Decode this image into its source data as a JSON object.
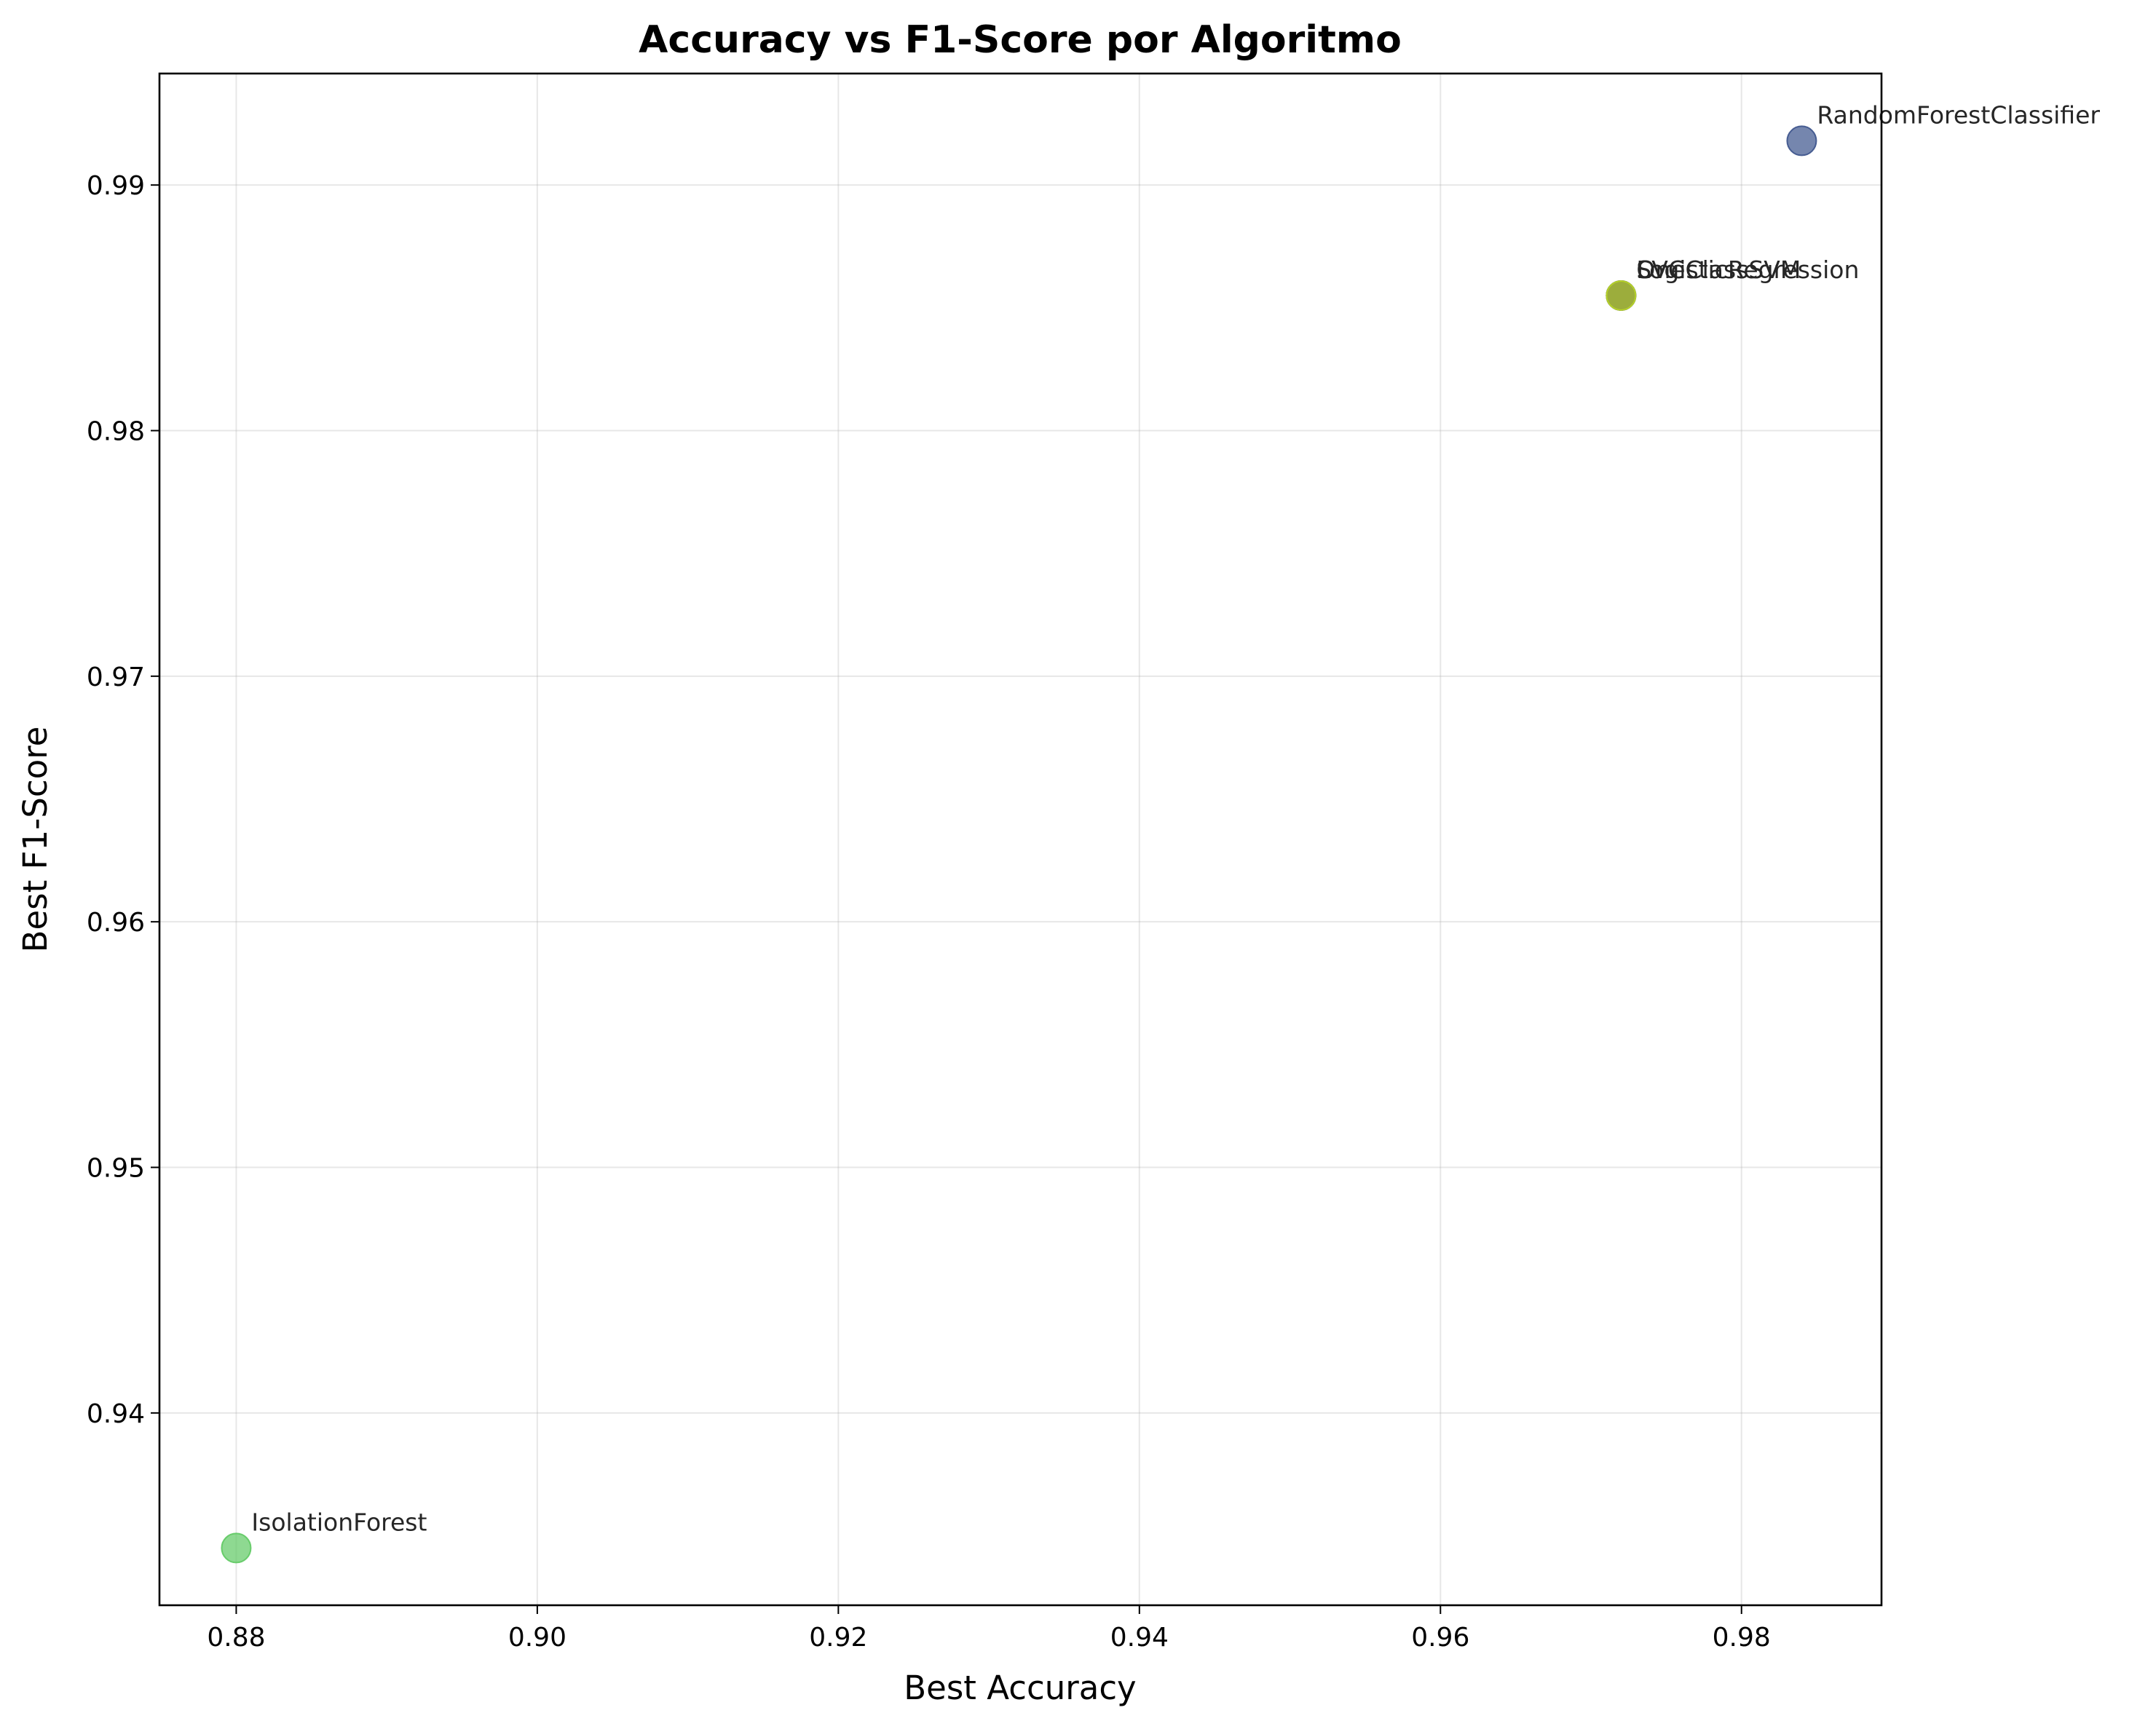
{
  "chart_data": {
    "type": "scatter",
    "title": "Accuracy vs F1-Score por Algoritmo",
    "xlabel": "Best Accuracy",
    "ylabel": "Best F1-Score",
    "xlim": [
      0.8749,
      0.9893
    ],
    "ylim": [
      0.93217,
      0.99454
    ],
    "xticks": [
      "0.88",
      "0.90",
      "0.92",
      "0.94",
      "0.96",
      "0.98"
    ],
    "xtick_values": [
      0.88,
      0.9,
      0.92,
      0.94,
      0.96,
      0.98
    ],
    "yticks": [
      "0.94",
      "0.95",
      "0.96",
      "0.97",
      "0.98",
      "0.99"
    ],
    "ytick_values": [
      0.94,
      0.95,
      0.96,
      0.97,
      0.98,
      0.99
    ],
    "grid": true,
    "points": [
      {
        "label": "RandomForestClassifier",
        "x": 0.984,
        "y": 0.9918,
        "color": "#3b528b"
      },
      {
        "label": "LogisticRegression",
        "x": 0.972,
        "y": 0.9855,
        "color": "#21918c"
      },
      {
        "label": "SVC",
        "x": 0.972,
        "y": 0.9855,
        "color": "#440154"
      },
      {
        "label": "OneClassSVM",
        "x": 0.972,
        "y": 0.9855,
        "color": "#bddf26"
      },
      {
        "label": "IsolationForest",
        "x": 0.88,
        "y": 0.9345,
        "color": "#5ec962"
      }
    ]
  }
}
